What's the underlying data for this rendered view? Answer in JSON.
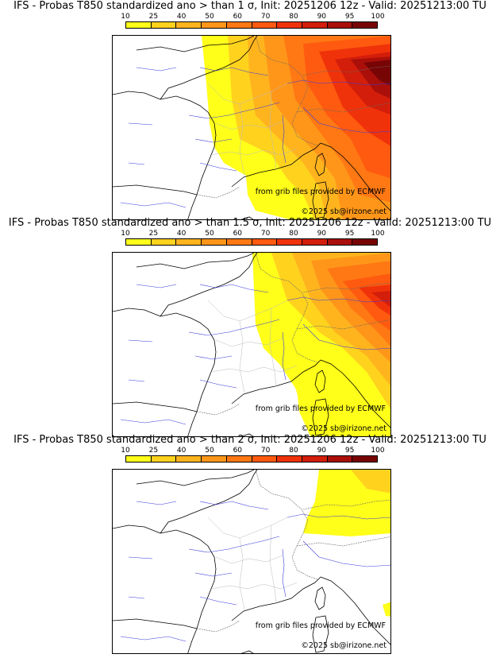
{
  "colorbar": {
    "labels": [
      "10",
      "25",
      "40",
      "50",
      "60",
      "70",
      "80",
      "90",
      "95",
      "100"
    ],
    "colors": [
      "#ffff1a",
      "#ffd21e",
      "#ffb41e",
      "#ff9619",
      "#ff7814",
      "#ff5a0f",
      "#f0320a",
      "#d21e0a",
      "#aa0f0a",
      "#780505"
    ]
  },
  "panels": [
    {
      "title": "IFS - Probas T850  standardized ano > than 1 σ, Init: 20251206 12z - Valid: 20251213:00 TU",
      "credit_source": "from grib files provided by ECMWF",
      "credit_copyright": "©2025 sb@irizone.net"
    },
    {
      "title": "IFS - Probas T850  standardized ano > than 1.5 σ, Init: 20251206 12z - Valid: 20251213:00 TU",
      "credit_source": "from grib files provided by ECMWF",
      "credit_copyright": "©2025 sb@irizone.net"
    },
    {
      "title": "IFS - Probas T850  standardized ano > than 2 σ, Init: 20251206 12z - Valid: 20251213:00 TU",
      "credit_source": "from grib files provided by ECMWF",
      "credit_copyright": "©2025 sb@irizone.net"
    }
  ]
}
